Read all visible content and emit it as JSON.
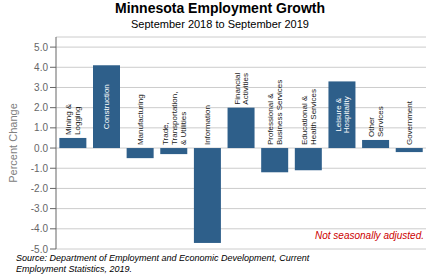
{
  "chart_data": {
    "type": "bar",
    "title": "Minnesota Employment Growth",
    "subtitle": "September 2018 to September 2019",
    "ylabel": "Percent Change",
    "categories": [
      "Mining &\nLogging",
      "Construction",
      "Manufacturing",
      "Trade,\nTransportation,\n& Utilities",
      "Information",
      "Financial\nActivities",
      "Professional &\nBusiness Services",
      "Educational &\nHealth Services",
      "Leisure &\nHospitality",
      "Other\nServices",
      "Government"
    ],
    "values": [
      0.5,
      4.1,
      -0.5,
      -0.3,
      -4.7,
      2.0,
      -1.2,
      -1.1,
      3.3,
      0.4,
      -0.2
    ],
    "color": "#2E5F8A",
    "ylim": [
      -5.0,
      5.5
    ],
    "yticks": [
      {
        "value": -5.0,
        "label": "-5.0"
      },
      {
        "value": -4.0,
        "label": "-4.0"
      },
      {
        "value": -3.0,
        "label": "-3.0"
      },
      {
        "value": -2.0,
        "label": "-2.0"
      },
      {
        "value": -1.0,
        "label": "-1.0"
      },
      {
        "value": 0.0,
        "label": "0.0"
      },
      {
        "value": 1.0,
        "label": "1.0"
      },
      {
        "value": 2.0,
        "label": "2.0"
      },
      {
        "value": 3.0,
        "label": "3.0"
      },
      {
        "value": 4.0,
        "label": "4.0"
      },
      {
        "value": 5.0,
        "label": "5.0"
      }
    ],
    "grid": true,
    "tick_labels": "y",
    "note": "Not seasonally adjusted.",
    "source": "Source: Department of Employment and Economic Development, Current\nEmployment Statistics, 2019."
  }
}
